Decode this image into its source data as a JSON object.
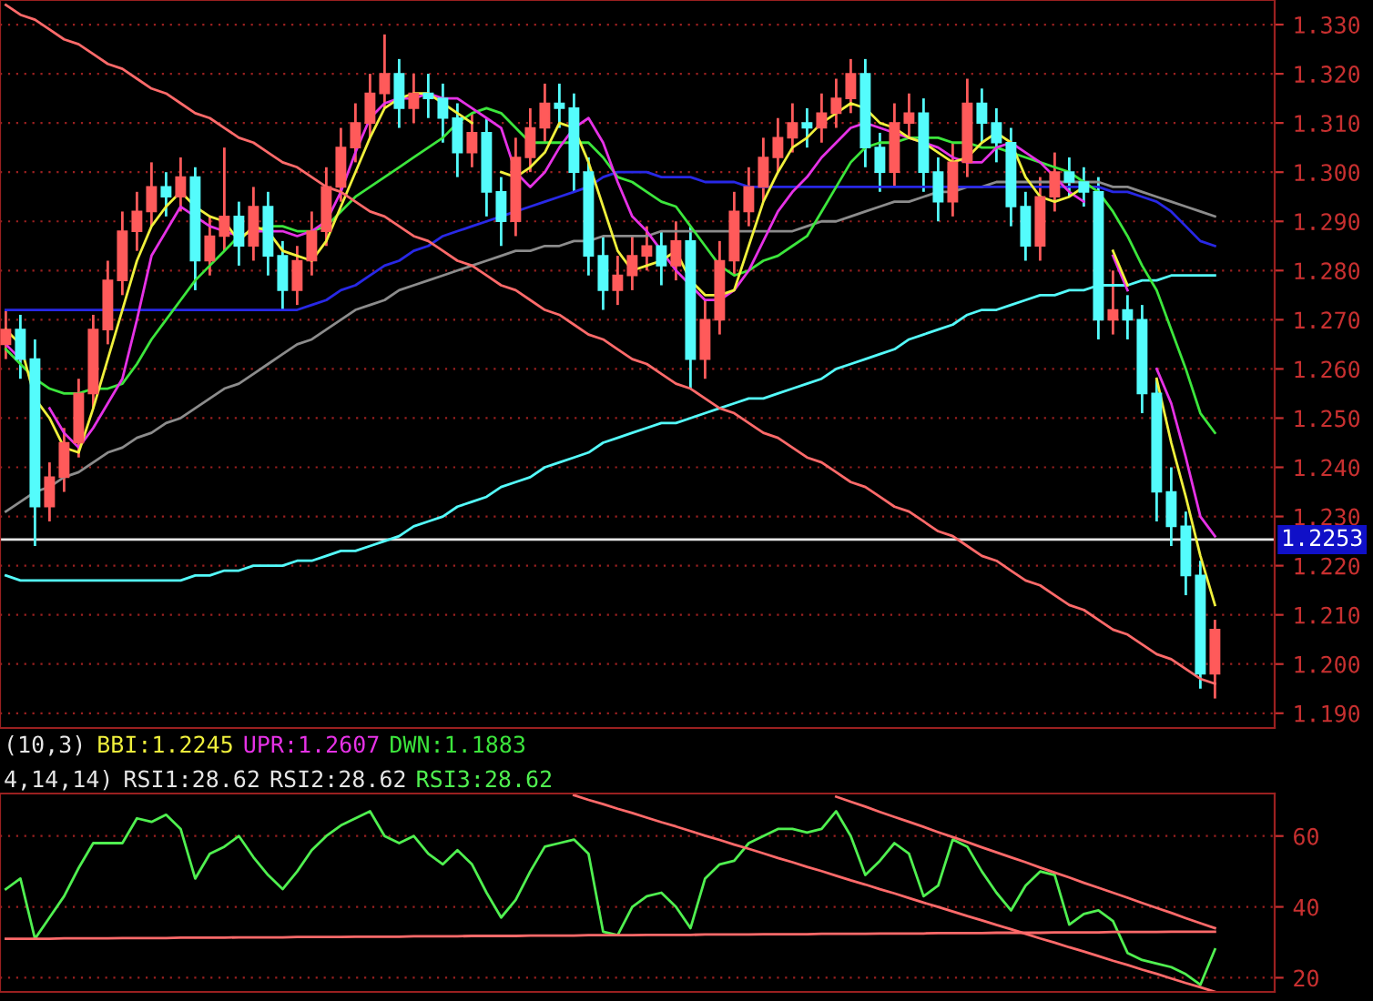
{
  "chart_data": [
    {
      "type": "candlestick",
      "categories": [
        null,
        null,
        null,
        null,
        null,
        null,
        null,
        null,
        null,
        null,
        null,
        null,
        null,
        null,
        null,
        null,
        null,
        null,
        null,
        null,
        null,
        null,
        null,
        null,
        null,
        null,
        null,
        null,
        null,
        null,
        null,
        null,
        null,
        null,
        null,
        null,
        null,
        null,
        null,
        null,
        null,
        null,
        null,
        null,
        null,
        null,
        null,
        null,
        null,
        null,
        null,
        null,
        null,
        null,
        null,
        null,
        null,
        null,
        null,
        null,
        null,
        null,
        null,
        null,
        null,
        null,
        null,
        null,
        null,
        null,
        null,
        null,
        null,
        null,
        null,
        null,
        null,
        null,
        null,
        null,
        null,
        null,
        null,
        null
      ],
      "ohlc": [
        [
          1.265,
          1.272,
          1.262,
          1.268
        ],
        [
          1.268,
          1.271,
          1.258,
          1.262
        ],
        [
          1.262,
          1.266,
          1.224,
          1.232
        ],
        [
          1.232,
          1.241,
          1.229,
          1.238
        ],
        [
          1.238,
          1.248,
          1.235,
          1.245
        ],
        [
          1.245,
          1.258,
          1.242,
          1.255
        ],
        [
          1.255,
          1.271,
          1.252,
          1.268
        ],
        [
          1.268,
          1.282,
          1.265,
          1.278
        ],
        [
          1.278,
          1.292,
          1.275,
          1.288
        ],
        [
          1.288,
          1.296,
          1.284,
          1.292
        ],
        [
          1.292,
          1.302,
          1.289,
          1.297
        ],
        [
          1.297,
          1.3,
          1.291,
          1.295
        ],
        [
          1.295,
          1.303,
          1.292,
          1.299
        ],
        [
          1.299,
          1.301,
          1.276,
          1.282
        ],
        [
          1.282,
          1.291,
          1.279,
          1.287
        ],
        [
          1.287,
          1.305,
          1.284,
          1.291
        ],
        [
          1.291,
          1.294,
          1.281,
          1.285
        ],
        [
          1.285,
          1.297,
          1.282,
          1.293
        ],
        [
          1.293,
          1.296,
          1.279,
          1.283
        ],
        [
          1.283,
          1.286,
          1.272,
          1.276
        ],
        [
          1.276,
          1.285,
          1.273,
          1.282
        ],
        [
          1.282,
          1.292,
          1.279,
          1.288
        ],
        [
          1.288,
          1.301,
          1.285,
          1.297
        ],
        [
          1.297,
          1.309,
          1.294,
          1.305
        ],
        [
          1.305,
          1.314,
          1.302,
          1.31
        ],
        [
          1.31,
          1.32,
          1.307,
          1.316
        ],
        [
          1.316,
          1.328,
          1.313,
          1.32
        ],
        [
          1.32,
          1.323,
          1.309,
          1.313
        ],
        [
          1.313,
          1.32,
          1.31,
          1.316
        ],
        [
          1.316,
          1.32,
          1.311,
          1.315
        ],
        [
          1.315,
          1.318,
          1.306,
          1.311
        ],
        [
          1.311,
          1.314,
          1.299,
          1.304
        ],
        [
          1.304,
          1.312,
          1.301,
          1.308
        ],
        [
          1.308,
          1.311,
          1.291,
          1.296
        ],
        [
          1.296,
          1.299,
          1.285,
          1.29
        ],
        [
          1.29,
          1.307,
          1.287,
          1.303
        ],
        [
          1.303,
          1.313,
          1.3,
          1.309
        ],
        [
          1.309,
          1.318,
          1.306,
          1.314
        ],
        [
          1.314,
          1.318,
          1.309,
          1.313
        ],
        [
          1.313,
          1.316,
          1.296,
          1.3
        ],
        [
          1.3,
          1.303,
          1.279,
          1.283
        ],
        [
          1.283,
          1.287,
          1.272,
          1.276
        ],
        [
          1.276,
          1.283,
          1.273,
          1.279
        ],
        [
          1.279,
          1.287,
          1.276,
          1.283
        ],
        [
          1.283,
          1.289,
          1.28,
          1.285
        ],
        [
          1.285,
          1.288,
          1.277,
          1.281
        ],
        [
          1.281,
          1.29,
          1.278,
          1.286
        ],
        [
          1.286,
          1.289,
          1.256,
          1.262
        ],
        [
          1.262,
          1.274,
          1.258,
          1.27
        ],
        [
          1.27,
          1.286,
          1.267,
          1.282
        ],
        [
          1.282,
          1.296,
          1.279,
          1.292
        ],
        [
          1.292,
          1.301,
          1.289,
          1.297
        ],
        [
          1.297,
          1.307,
          1.294,
          1.303
        ],
        [
          1.303,
          1.311,
          1.3,
          1.307
        ],
        [
          1.307,
          1.314,
          1.304,
          1.31
        ],
        [
          1.31,
          1.313,
          1.305,
          1.309
        ],
        [
          1.309,
          1.316,
          1.306,
          1.312
        ],
        [
          1.312,
          1.319,
          1.309,
          1.315
        ],
        [
          1.315,
          1.323,
          1.312,
          1.32
        ],
        [
          1.32,
          1.323,
          1.301,
          1.305
        ],
        [
          1.305,
          1.308,
          1.296,
          1.3
        ],
        [
          1.3,
          1.314,
          1.297,
          1.31
        ],
        [
          1.31,
          1.316,
          1.307,
          1.312
        ],
        [
          1.312,
          1.315,
          1.296,
          1.3
        ],
        [
          1.3,
          1.303,
          1.29,
          1.294
        ],
        [
          1.294,
          1.306,
          1.291,
          1.302
        ],
        [
          1.302,
          1.319,
          1.299,
          1.314
        ],
        [
          1.314,
          1.317,
          1.306,
          1.31
        ],
        [
          1.31,
          1.313,
          1.302,
          1.306
        ],
        [
          1.306,
          1.309,
          1.289,
          1.293
        ],
        [
          1.293,
          1.296,
          1.282,
          1.285
        ],
        [
          1.285,
          1.299,
          1.282,
          1.295
        ],
        [
          1.295,
          1.304,
          1.292,
          1.3
        ],
        [
          1.3,
          1.303,
          1.295,
          1.298
        ],
        [
          1.298,
          1.301,
          1.293,
          1.296
        ],
        [
          1.296,
          1.299,
          1.266,
          1.27
        ],
        [
          1.27,
          1.28,
          1.267,
          1.272
        ],
        [
          1.272,
          1.275,
          1.266,
          1.27
        ],
        [
          1.27,
          1.273,
          1.251,
          1.255
        ],
        [
          1.255,
          1.258,
          1.229,
          1.235
        ],
        [
          1.235,
          1.24,
          1.224,
          1.228
        ],
        [
          1.228,
          1.231,
          1.214,
          1.218
        ],
        [
          1.218,
          1.221,
          1.195,
          1.198
        ],
        [
          1.198,
          1.209,
          1.193,
          1.207
        ]
      ],
      "colors": [
        "#ff5a5a",
        "#54fcfc",
        "#54fcfc",
        "#ff5a5a",
        "#ff5a5a",
        "#ff5a5a",
        "#ff5a5a",
        "#ff5a5a",
        "#ff5a5a",
        "#ff5a5a",
        "#ff5a5a",
        "#54fcfc",
        "#ff5a5a",
        "#54fcfc",
        "#ff5a5a",
        "#ff5a5a",
        "#54fcfc",
        "#ff5a5a",
        "#54fcfc",
        "#54fcfc",
        "#ff5a5a",
        "#ff5a5a",
        "#ff5a5a",
        "#ff5a5a",
        "#ff5a5a",
        "#ff5a5a",
        "#ff5a5a",
        "#54fcfc",
        "#ff5a5a",
        "#54fcfc",
        "#54fcfc",
        "#54fcfc",
        "#ff5a5a",
        "#54fcfc",
        "#54fcfc",
        "#ff5a5a",
        "#ff5a5a",
        "#ff5a5a",
        "#54fcfc",
        "#54fcfc",
        "#54fcfc",
        "#54fcfc",
        "#ff5a5a",
        "#ff5a5a",
        "#ff5a5a",
        "#54fcfc",
        "#ff5a5a",
        "#54fcfc",
        "#ff5a5a",
        "#ff5a5a",
        "#ff5a5a",
        "#ff5a5a",
        "#ff5a5a",
        "#ff5a5a",
        "#ff5a5a",
        "#54fcfc",
        "#ff5a5a",
        "#ff5a5a",
        "#ff5a5a",
        "#54fcfc",
        "#54fcfc",
        "#ff5a5a",
        "#ff5a5a",
        "#54fcfc",
        "#54fcfc",
        "#ff5a5a",
        "#ff5a5a",
        "#54fcfc",
        "#54fcfc",
        "#54fcfc",
        "#54fcfc",
        "#ff5a5a",
        "#ff5a5a",
        "#54fcfc",
        "#54fcfc",
        "#54fcfc",
        "#ff5a5a",
        "#54fcfc",
        "#54fcfc",
        "#54fcfc",
        "#54fcfc",
        "#54fcfc",
        "#54fcfc",
        "#ff5a5a"
      ],
      "series": [
        {
          "type": "line",
          "color": "#54fcfc",
          "values": [
            1.218,
            1.217,
            1.217,
            1.217,
            1.217,
            1.217,
            1.217,
            1.217,
            1.217,
            1.217,
            1.217,
            1.217,
            1.217,
            1.218,
            1.218,
            1.219,
            1.219,
            1.22,
            1.22,
            1.22,
            1.221,
            1.221,
            1.222,
            1.223,
            1.223,
            1.224,
            1.225,
            1.226,
            1.228,
            1.229,
            1.23,
            1.232,
            1.233,
            1.234,
            1.236,
            1.237,
            1.238,
            1.24,
            1.241,
            1.242,
            1.243,
            1.245,
            1.246,
            1.247,
            1.248,
            1.249,
            1.249,
            1.25,
            1.251,
            1.252,
            1.253,
            1.254,
            1.254,
            1.255,
            1.256,
            1.257,
            1.258,
            1.26,
            1.261,
            1.262,
            1.263,
            1.264,
            1.266,
            1.267,
            1.268,
            1.269,
            1.271,
            1.272,
            1.272,
            1.273,
            1.274,
            1.275,
            1.275,
            1.276,
            1.276,
            1.277,
            1.277,
            1.277,
            1.278,
            1.278,
            1.279,
            1.279,
            1.279,
            1.279
          ]
        },
        {
          "type": "line",
          "color": "#8c8c8c",
          "values": [
            1.231,
            1.233,
            1.235,
            1.236,
            1.238,
            1.239,
            1.241,
            1.243,
            1.244,
            1.246,
            1.247,
            1.249,
            1.25,
            1.252,
            1.254,
            1.256,
            1.257,
            1.259,
            1.261,
            1.263,
            1.265,
            1.266,
            1.268,
            1.27,
            1.272,
            1.273,
            1.274,
            1.276,
            1.277,
            1.278,
            1.279,
            1.28,
            1.281,
            1.282,
            1.283,
            1.284,
            1.284,
            1.285,
            1.285,
            1.286,
            1.286,
            1.287,
            1.287,
            1.287,
            1.287,
            1.288,
            1.288,
            1.288,
            1.288,
            1.288,
            1.288,
            1.288,
            1.288,
            1.288,
            1.288,
            1.289,
            1.29,
            1.29,
            1.291,
            1.292,
            1.293,
            1.294,
            1.294,
            1.295,
            1.296,
            1.296,
            1.297,
            1.297,
            1.298,
            1.298,
            1.298,
            1.298,
            1.298,
            1.298,
            1.298,
            1.298,
            1.297,
            1.297,
            1.296,
            1.295,
            1.294,
            1.293,
            1.292,
            1.291
          ]
        },
        {
          "type": "line",
          "color": "#2828e6",
          "values": [
            1.272,
            1.272,
            1.272,
            1.272,
            1.272,
            1.272,
            1.272,
            1.272,
            1.272,
            1.272,
            1.272,
            1.272,
            1.272,
            1.272,
            1.272,
            1.272,
            1.272,
            1.272,
            1.272,
            1.272,
            1.272,
            1.273,
            1.274,
            1.276,
            1.277,
            1.279,
            1.281,
            1.282,
            1.284,
            1.285,
            1.287,
            1.288,
            1.289,
            1.29,
            1.291,
            1.292,
            1.293,
            1.294,
            1.295,
            1.296,
            1.297,
            1.299,
            1.3,
            1.3,
            1.3,
            1.299,
            1.299,
            1.299,
            1.298,
            1.298,
            1.298,
            1.297,
            1.297,
            1.297,
            1.297,
            1.297,
            1.297,
            1.297,
            1.297,
            1.297,
            1.297,
            1.297,
            1.297,
            1.297,
            1.297,
            1.297,
            1.297,
            1.297,
            1.297,
            1.297,
            1.297,
            1.297,
            1.297,
            1.297,
            1.297,
            1.297,
            1.296,
            1.296,
            1.295,
            1.294,
            1.292,
            1.289,
            1.286,
            1.285
          ]
        },
        {
          "type": "line",
          "name": "DWN:1.1883",
          "color": "#3ce63c",
          "values": [
            1.264,
            1.261,
            1.258,
            1.256,
            1.255,
            1.255,
            1.256,
            1.256,
            1.257,
            1.261,
            1.266,
            1.27,
            1.274,
            1.278,
            1.281,
            1.284,
            1.287,
            1.288,
            1.289,
            1.289,
            1.288,
            1.288,
            1.289,
            1.292,
            1.295,
            1.297,
            1.299,
            1.301,
            1.303,
            1.305,
            1.307,
            1.31,
            1.312,
            1.313,
            1.312,
            1.309,
            1.306,
            1.306,
            1.306,
            1.306,
            1.306,
            1.303,
            1.299,
            1.298,
            1.296,
            1.294,
            1.293,
            1.289,
            1.285,
            1.281,
            1.279,
            1.28,
            1.282,
            1.283,
            1.285,
            1.287,
            1.292,
            1.297,
            1.302,
            1.305,
            1.306,
            1.306,
            1.307,
            1.307,
            1.307,
            1.306,
            1.306,
            1.305,
            1.305,
            1.304,
            1.303,
            1.302,
            1.301,
            1.3,
            1.298,
            1.296,
            1.292,
            1.287,
            1.281,
            1.276,
            1.268,
            1.26,
            1.251,
            1.247
          ]
        },
        {
          "type": "line",
          "name": "UPR:1.2607",
          "color": "#e632e6",
          "values": [
            1.265,
            1.262,
            null,
            1.252,
            1.247,
            1.244,
            1.248,
            1.253,
            1.258,
            1.27,
            1.283,
            1.288,
            1.293,
            1.291,
            1.289,
            1.288,
            1.287,
            1.288,
            1.288,
            1.288,
            1.287,
            1.288,
            1.29,
            1.296,
            1.304,
            1.311,
            1.314,
            1.315,
            1.315,
            1.316,
            1.315,
            1.315,
            1.313,
            1.311,
            1.309,
            1.3,
            1.297,
            1.3,
            1.305,
            1.309,
            1.311,
            1.306,
            1.298,
            1.291,
            1.288,
            1.284,
            1.28,
            1.277,
            1.274,
            1.274,
            1.276,
            1.28,
            1.286,
            1.292,
            1.296,
            1.299,
            1.303,
            1.306,
            1.309,
            1.31,
            1.309,
            1.308,
            1.307,
            1.306,
            1.305,
            1.303,
            1.302,
            1.302,
            1.305,
            1.306,
            1.304,
            1.302,
            1.299,
            1.296,
            1.294,
            null,
            1.283,
            1.276,
            null,
            1.26,
            1.253,
            1.242,
            1.23,
            1.226
          ]
        },
        {
          "type": "line",
          "name": "BBI:1.2245",
          "color": "#f0f03c",
          "values": [
            1.268,
            1.265,
            1.254,
            1.25,
            1.244,
            1.243,
            1.252,
            1.262,
            1.272,
            1.282,
            1.289,
            1.293,
            1.296,
            1.293,
            1.291,
            1.29,
            1.286,
            1.289,
            1.288,
            1.284,
            1.283,
            1.282,
            1.286,
            1.293,
            1.3,
            1.307,
            1.313,
            1.315,
            1.316,
            1.316,
            1.314,
            1.312,
            1.31,
            null,
            1.3,
            1.299,
            1.301,
            1.304,
            1.31,
            1.309,
            1.302,
            1.293,
            1.284,
            1.28,
            1.281,
            1.282,
            1.284,
            1.278,
            1.275,
            1.275,
            1.276,
            1.285,
            1.294,
            1.3,
            1.305,
            1.307,
            1.31,
            1.312,
            1.314,
            1.313,
            1.31,
            1.309,
            1.307,
            1.306,
            1.304,
            1.302,
            1.303,
            1.306,
            1.308,
            1.306,
            1.299,
            1.295,
            1.294,
            1.295,
            1.297,
            null,
            1.284,
            1.277,
            null,
            1.258,
            1.245,
            1.234,
            1.222,
            1.212
          ]
        },
        {
          "type": "line",
          "color": "#ff6a6a",
          "values": [
            1.334,
            1.332,
            1.331,
            1.329,
            1.327,
            1.326,
            1.324,
            1.322,
            1.321,
            1.319,
            1.317,
            1.316,
            1.314,
            1.312,
            1.311,
            1.309,
            1.307,
            1.306,
            1.304,
            1.302,
            1.301,
            1.299,
            1.297,
            1.296,
            1.294,
            1.292,
            1.291,
            1.289,
            1.287,
            1.286,
            1.284,
            1.282,
            1.281,
            1.279,
            1.277,
            1.276,
            1.274,
            1.272,
            1.271,
            1.269,
            1.267,
            1.266,
            1.264,
            1.262,
            1.261,
            1.259,
            1.257,
            1.256,
            1.254,
            1.252,
            1.251,
            1.249,
            1.247,
            1.246,
            1.244,
            1.242,
            1.241,
            1.239,
            1.237,
            1.236,
            1.234,
            1.232,
            1.231,
            1.229,
            1.227,
            1.226,
            1.224,
            1.222,
            1.221,
            1.219,
            1.217,
            1.216,
            1.214,
            1.212,
            1.211,
            1.209,
            1.207,
            1.206,
            1.204,
            1.202,
            1.201,
            1.199,
            1.197,
            1.196
          ]
        }
      ],
      "ylim": [
        1.187,
        1.335
      ],
      "yticks": [
        {
          "value": 1.19,
          "label": "1.190"
        },
        {
          "value": 1.2,
          "label": "1.200"
        },
        {
          "value": 1.21,
          "label": "1.210"
        },
        {
          "value": 1.22,
          "label": "1.220"
        },
        {
          "value": 1.23,
          "label": "1.230"
        },
        {
          "value": 1.24,
          "label": "1.240"
        },
        {
          "value": 1.25,
          "label": "1.250"
        },
        {
          "value": 1.26,
          "label": "1.260"
        },
        {
          "value": 1.27,
          "label": "1.270"
        },
        {
          "value": 1.28,
          "label": "1.280"
        },
        {
          "value": 1.29,
          "label": "1.290"
        },
        {
          "value": 1.3,
          "label": "1.300"
        },
        {
          "value": 1.31,
          "label": "1.310"
        },
        {
          "value": 1.32,
          "label": "1.320"
        },
        {
          "value": 1.33,
          "label": "1.330"
        }
      ],
      "ref_lines": [
        {
          "axis": "y",
          "value": 1.2253,
          "label": "1.2253",
          "color": "#e6e6e6"
        }
      ],
      "annotations": [
        "(10,3)"
      ],
      "grid": "y",
      "tick_labels": "y",
      "legend": "bottom"
    },
    {
      "type": "line",
      "categories": [
        null,
        null,
        null,
        null,
        null,
        null,
        null,
        null,
        null,
        null,
        null,
        null,
        null,
        null,
        null,
        null,
        null,
        null,
        null,
        null,
        null,
        null,
        null,
        null,
        null,
        null,
        null,
        null,
        null,
        null,
        null,
        null,
        null,
        null,
        null,
        null,
        null,
        null,
        null,
        null,
        null,
        null,
        null,
        null,
        null,
        null,
        null,
        null,
        null,
        null,
        null,
        null,
        null,
        null,
        null,
        null,
        null,
        null,
        null,
        null,
        null,
        null,
        null,
        null,
        null,
        null,
        null,
        null,
        null,
        null,
        null,
        null,
        null,
        null,
        null,
        null,
        null,
        null,
        null,
        null,
        null,
        null,
        null,
        null
      ],
      "series": [
        {
          "name": "RSI3:28.62",
          "color": "#50f050",
          "values": [
            45,
            48,
            31,
            37,
            43,
            51,
            58,
            58,
            58,
            65,
            64,
            66,
            62,
            48,
            55,
            57,
            60,
            54,
            49,
            45,
            50,
            56,
            60,
            63,
            65,
            67,
            60,
            58,
            60,
            55,
            52,
            56,
            52,
            44,
            37,
            42,
            50,
            57,
            58,
            59,
            55,
            33,
            32,
            40,
            43,
            44,
            40,
            34,
            48,
            52,
            53,
            58,
            60,
            62,
            62,
            61,
            62,
            67,
            60,
            49,
            53,
            58,
            55,
            43,
            46,
            59,
            57,
            50,
            44,
            39,
            46,
            50,
            49,
            35,
            38,
            39,
            36,
            27,
            25,
            24,
            23,
            21,
            18,
            28
          ]
        },
        {
          "color": "#ff6a6a",
          "values": [
            31.0,
            31.0,
            31.0,
            31.0,
            31.1,
            31.1,
            31.1,
            31.1,
            31.2,
            31.2,
            31.2,
            31.2,
            31.3,
            31.3,
            31.3,
            31.3,
            31.4,
            31.4,
            31.4,
            31.4,
            31.5,
            31.5,
            31.5,
            31.5,
            31.6,
            31.6,
            31.6,
            31.6,
            31.7,
            31.7,
            31.7,
            31.7,
            31.8,
            31.8,
            31.8,
            31.8,
            31.9,
            31.9,
            31.9,
            31.9,
            32.0,
            32.0,
            32.0,
            32.0,
            32.1,
            32.1,
            32.1,
            32.1,
            32.2,
            32.2,
            32.2,
            32.2,
            32.3,
            32.3,
            32.3,
            32.3,
            32.4,
            32.4,
            32.4,
            32.4,
            32.5,
            32.5,
            32.5,
            32.5,
            32.6,
            32.6,
            32.6,
            32.6,
            32.7,
            32.7,
            32.7,
            32.7,
            32.8,
            32.8,
            32.8,
            32.8,
            32.9,
            32.9,
            32.9,
            32.9,
            33.0,
            33.0,
            33.0,
            33.0
          ]
        },
        {
          "color": "#ff6a6a",
          "values": [
            null,
            null,
            null,
            null,
            null,
            null,
            null,
            null,
            null,
            null,
            null,
            null,
            null,
            null,
            null,
            null,
            null,
            null,
            null,
            null,
            null,
            null,
            null,
            null,
            null,
            null,
            null,
            null,
            null,
            null,
            null,
            null,
            null,
            null,
            null,
            null,
            null,
            null,
            null,
            71.5,
            70.2,
            69.0,
            67.7,
            66.5,
            65.2,
            63.9,
            62.7,
            61.4,
            60.1,
            58.9,
            57.6,
            56.4,
            55.1,
            53.8,
            52.6,
            51.3,
            50.1,
            48.8,
            47.5,
            46.3,
            45.0,
            43.8,
            42.5,
            41.2,
            40.0,
            38.7,
            37.4,
            36.2,
            34.9,
            33.7,
            32.4,
            31.1,
            29.9,
            28.6,
            27.4,
            26.1,
            24.8,
            23.6,
            22.3,
            21.1,
            19.8,
            18.5,
            17.3,
            16.0
          ]
        },
        {
          "color": "#ff6a6a",
          "values": [
            null,
            null,
            null,
            null,
            null,
            null,
            null,
            null,
            null,
            null,
            null,
            null,
            null,
            null,
            null,
            null,
            null,
            null,
            null,
            null,
            null,
            null,
            null,
            null,
            null,
            null,
            null,
            null,
            null,
            null,
            null,
            null,
            null,
            null,
            null,
            null,
            null,
            null,
            null,
            null,
            null,
            null,
            null,
            null,
            null,
            null,
            null,
            null,
            null,
            null,
            null,
            null,
            null,
            null,
            null,
            null,
            null,
            71.1,
            69.7,
            68.3,
            66.8,
            65.4,
            64.0,
            62.6,
            61.1,
            59.7,
            58.3,
            56.8,
            55.4,
            54.0,
            52.6,
            51.1,
            49.7,
            48.3,
            46.8,
            45.4,
            44.0,
            42.6,
            41.1,
            39.7,
            38.3,
            36.8,
            35.4,
            34.0
          ]
        }
      ],
      "ylim": [
        16,
        72
      ],
      "yticks": [
        20,
        40,
        60
      ],
      "annotations": [
        "4,14,14)",
        "RSI1:28.62",
        "RSI2:28.62"
      ],
      "grid": "y",
      "tick_labels": "y",
      "legend": "top left"
    }
  ]
}
